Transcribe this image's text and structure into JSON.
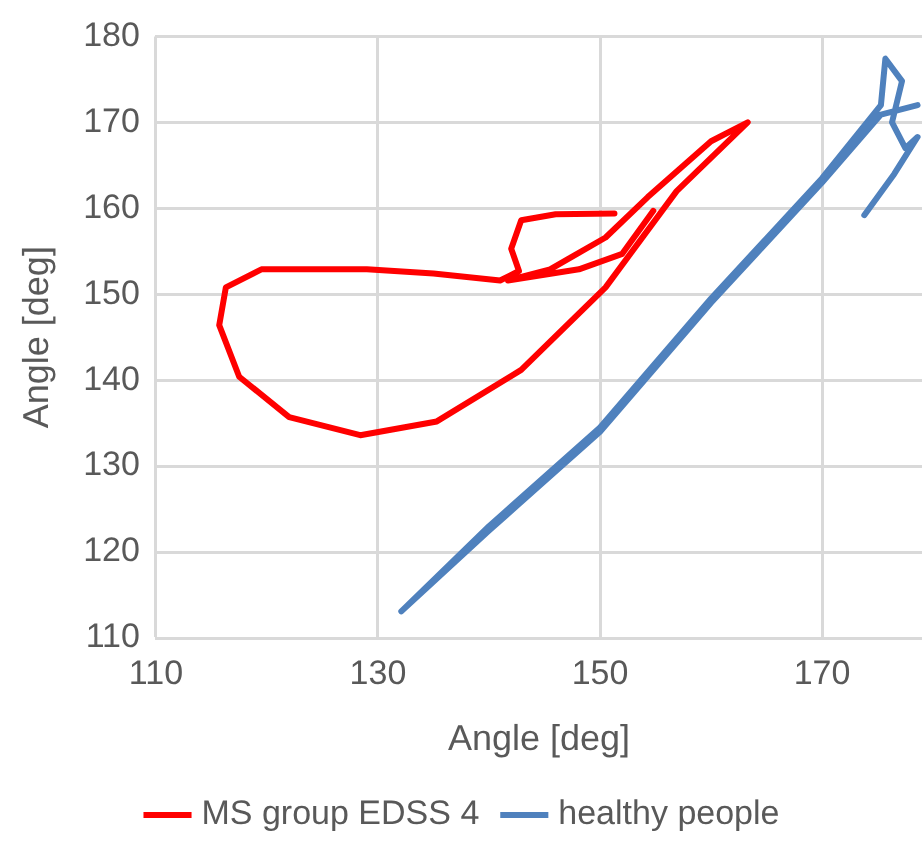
{
  "chart_data": {
    "type": "line",
    "xlabel": "Angle [deg]",
    "ylabel": "Angle [deg]",
    "xlim": [
      110,
      179
    ],
    "xticks": [
      110,
      130,
      150,
      170
    ],
    "ylim": [
      110,
      180
    ],
    "yticks": [
      110,
      120,
      130,
      140,
      150,
      160,
      170,
      180
    ],
    "grid": true,
    "legend": "bottom",
    "marker": "none",
    "line_style": "solid",
    "series": [
      {
        "name": "MS group EDSS 4",
        "color": "#ff0000",
        "x": [
          151.3,
          146,
          142.9,
          142,
          142.7,
          141,
          135,
          129,
          119.5,
          116.3,
          115.7,
          117.5,
          122,
          128.4,
          135.3,
          142.9,
          150.5,
          156.9,
          163.3,
          160,
          154.3,
          150.5,
          145.5,
          141.7,
          148.1,
          152,
          154.8
        ],
        "values": [
          159.4,
          159.3,
          158.6,
          155.3,
          152.7,
          151.6,
          152.4,
          152.9,
          152.9,
          150.8,
          146.4,
          140.4,
          135.7,
          133.6,
          135.2,
          141.2,
          150.8,
          162,
          170,
          167.8,
          161.3,
          156.6,
          152.9,
          151.6,
          152.9,
          154.7,
          159.7
        ]
      },
      {
        "name": "healthy people",
        "color": "#4f81bd",
        "x": [
          173.8,
          176.5,
          178.6,
          177.5,
          176.3,
          177.2,
          175.7,
          175.3,
          170,
          160,
          150,
          140,
          132.1,
          140,
          150,
          160,
          170,
          175.3,
          178.6
        ],
        "values": [
          159.2,
          164,
          168.3,
          167,
          170,
          174.8,
          177.4,
          172,
          163.5,
          149.5,
          134.5,
          123,
          113.1,
          122.5,
          134,
          149,
          163,
          170.9,
          172
        ]
      }
    ]
  }
}
